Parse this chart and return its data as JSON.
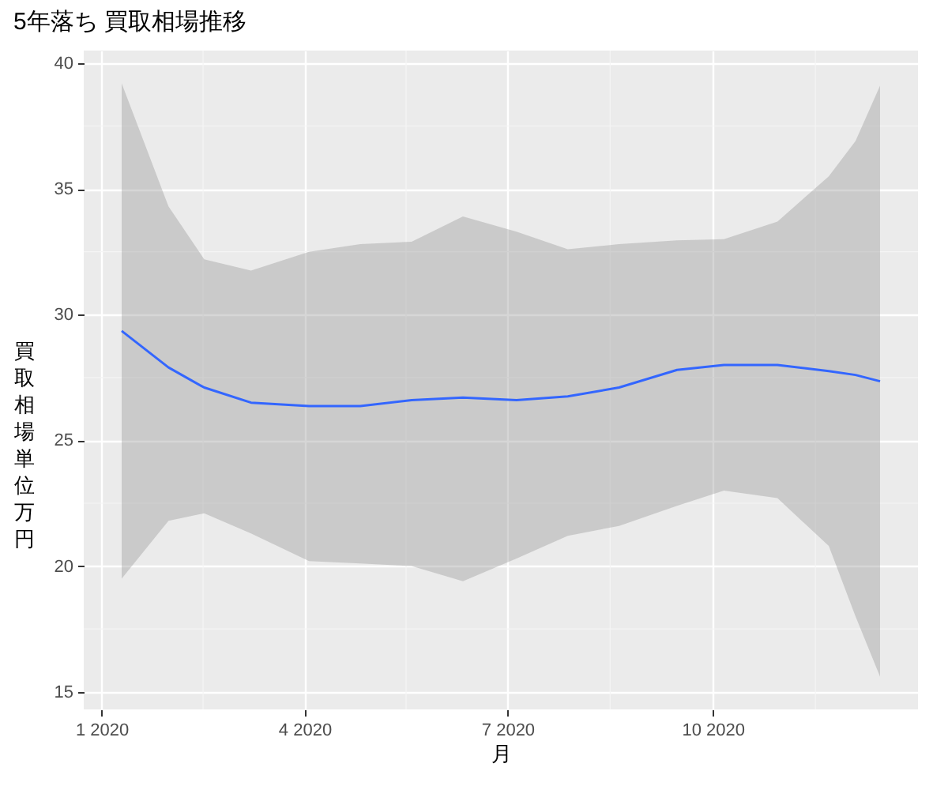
{
  "chart_data": {
    "type": "line",
    "title": "5年落ち 買取相場推移",
    "xlabel": "月",
    "ylabel": "買取相場単位万円",
    "x": [
      "2020-01-10",
      "2020-01-31",
      "2020-02-16",
      "2020-03-08",
      "2020-04-03",
      "2020-04-26",
      "2020-05-19",
      "2020-06-11",
      "2020-07-05",
      "2020-07-28",
      "2020-08-20",
      "2020-09-15",
      "2020-10-06",
      "2020-10-30",
      "2020-11-22",
      "2020-12-04",
      "2020-12-15"
    ],
    "series": [
      {
        "color": "#3366ff",
        "values": [
          29.35,
          27.9,
          27.1,
          26.5,
          26.36,
          26.36,
          26.6,
          26.7,
          26.6,
          26.75,
          27.1,
          27.8,
          28.0,
          28.0,
          27.75,
          27.6,
          27.35
        ],
        "upper": [
          39.2,
          34.3,
          32.2,
          31.75,
          32.5,
          32.8,
          32.9,
          33.9,
          33.3,
          32.6,
          32.8,
          32.95,
          33.0,
          33.7,
          35.5,
          36.9,
          39.1
        ],
        "lower": [
          19.5,
          21.8,
          22.1,
          21.3,
          20.2,
          20.1,
          20.0,
          19.4,
          20.3,
          21.2,
          21.6,
          22.4,
          23.0,
          22.7,
          20.8,
          18.0,
          15.6
        ]
      }
    ],
    "xlim": [
      "2019-12-24",
      "2021-01-01"
    ],
    "xticks": [
      {
        "value": "2020-01-01",
        "label": "1 2020"
      },
      {
        "value": "2020-04-01",
        "label": "4 2020"
      },
      {
        "value": "2020-07-01",
        "label": "7 2020"
      },
      {
        "value": "2020-10-01",
        "label": "10 2020"
      }
    ],
    "ylim": [
      14.3,
      40.5
    ],
    "yticks": [
      15,
      20,
      25,
      30,
      35,
      40
    ],
    "grid": true,
    "marker": "none",
    "line_style": "solid"
  }
}
